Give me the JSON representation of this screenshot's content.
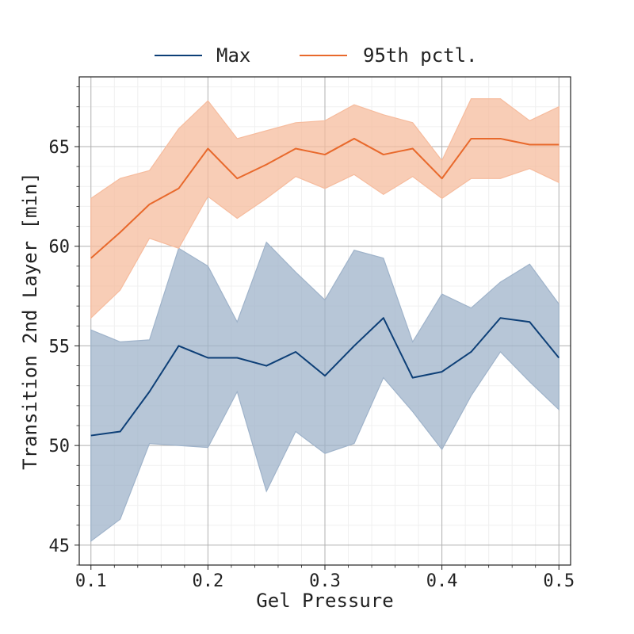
{
  "chart_data": {
    "type": "line",
    "xlabel": "Gel Pressure",
    "ylabel": "Transition 2nd Layer [min]",
    "xlim": [
      0.09,
      0.51
    ],
    "ylim": [
      44.0,
      68.5
    ],
    "xticks": [
      0.1,
      0.2,
      0.3,
      0.4,
      0.5
    ],
    "xtick_labels": [
      "0.1",
      "0.2",
      "0.3",
      "0.4",
      "0.5"
    ],
    "yticks": [
      45,
      50,
      55,
      60,
      65
    ],
    "ytick_labels": [
      "45",
      "50",
      "55",
      "60",
      "65"
    ],
    "grid": true,
    "minor_grid": true,
    "legend_position": "top-center-outside",
    "x": [
      0.1,
      0.125,
      0.15,
      0.175,
      0.2,
      0.225,
      0.25,
      0.275,
      0.3,
      0.325,
      0.35,
      0.375,
      0.4,
      0.425,
      0.45,
      0.475,
      0.5
    ],
    "series": [
      {
        "name": "Max",
        "color": "#0d3f77",
        "band_color": "#9fb3ca",
        "values": [
          50.5,
          50.7,
          52.7,
          55.0,
          54.4,
          54.4,
          54.0,
          54.7,
          53.5,
          55.0,
          56.4,
          53.4,
          53.7,
          54.7,
          56.4,
          56.2,
          54.4
        ],
        "lower": [
          45.2,
          46.3,
          50.1,
          50.0,
          49.9,
          52.7,
          47.7,
          50.7,
          49.6,
          50.1,
          53.4,
          51.7,
          49.8,
          52.5,
          54.7,
          53.2,
          51.8
        ],
        "upper": [
          55.8,
          55.2,
          55.3,
          59.9,
          59.0,
          56.2,
          60.2,
          58.7,
          57.3,
          59.8,
          59.4,
          55.2,
          57.6,
          56.9,
          58.2,
          59.1,
          57.1
        ]
      },
      {
        "name": "95th pctl.",
        "color": "#e8692c",
        "band_color": "#f6bc9e",
        "values": [
          59.4,
          60.7,
          62.1,
          62.9,
          64.9,
          63.4,
          64.1,
          64.9,
          64.6,
          65.4,
          64.6,
          64.9,
          63.4,
          65.4,
          65.4,
          65.1,
          65.1
        ],
        "lower": [
          56.4,
          57.8,
          60.4,
          59.9,
          62.5,
          61.4,
          62.4,
          63.5,
          62.9,
          63.6,
          62.6,
          63.5,
          62.4,
          63.4,
          63.4,
          63.9,
          63.2
        ],
        "upper": [
          62.4,
          63.4,
          63.8,
          65.9,
          67.3,
          65.4,
          65.8,
          66.2,
          66.3,
          67.1,
          66.6,
          66.2,
          64.3,
          67.4,
          67.4,
          66.3,
          67.0
        ]
      }
    ]
  }
}
